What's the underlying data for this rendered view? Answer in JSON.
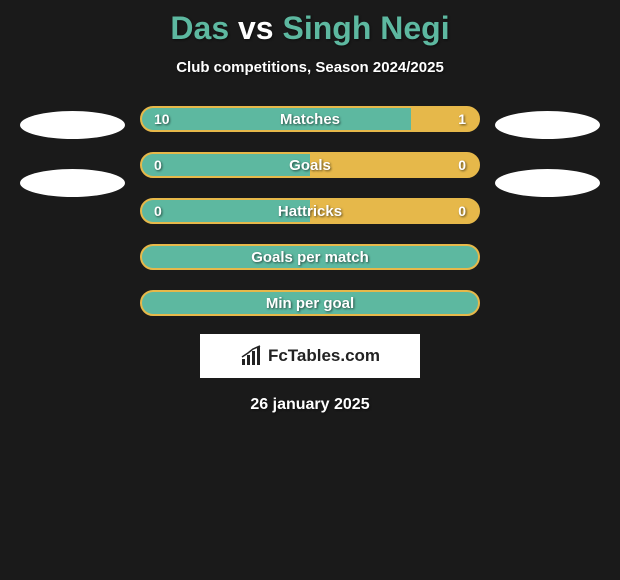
{
  "title": {
    "player1": "Das",
    "sep": "vs",
    "player2": "Singh Negi",
    "color": "#5db8a0",
    "sep_color": "#ffffff",
    "fontsize": 32
  },
  "subtitle": "Club competitions, Season 2024/2025",
  "background_color": "#1a1a1a",
  "player1_color": "#5db8a0",
  "player2_color": "#e6b84a",
  "bars": [
    {
      "label": "Matches",
      "left_val": "10",
      "right_val": "1",
      "left_pct": 80,
      "right_pct": 20,
      "show_vals": true
    },
    {
      "label": "Goals",
      "left_val": "0",
      "right_val": "0",
      "left_pct": 50,
      "right_pct": 50,
      "show_vals": true
    },
    {
      "label": "Hattricks",
      "left_val": "0",
      "right_val": "0",
      "left_pct": 50,
      "right_pct": 50,
      "show_vals": true
    },
    {
      "label": "Goals per match",
      "left_val": "",
      "right_val": "",
      "left_pct": 100,
      "right_pct": 0,
      "show_vals": false
    },
    {
      "label": "Min per goal",
      "left_val": "",
      "right_val": "",
      "left_pct": 100,
      "right_pct": 0,
      "show_vals": false
    }
  ],
  "ellipse_color": "#ffffff",
  "brand": "FcTables.com",
  "date": "26 january 2025"
}
